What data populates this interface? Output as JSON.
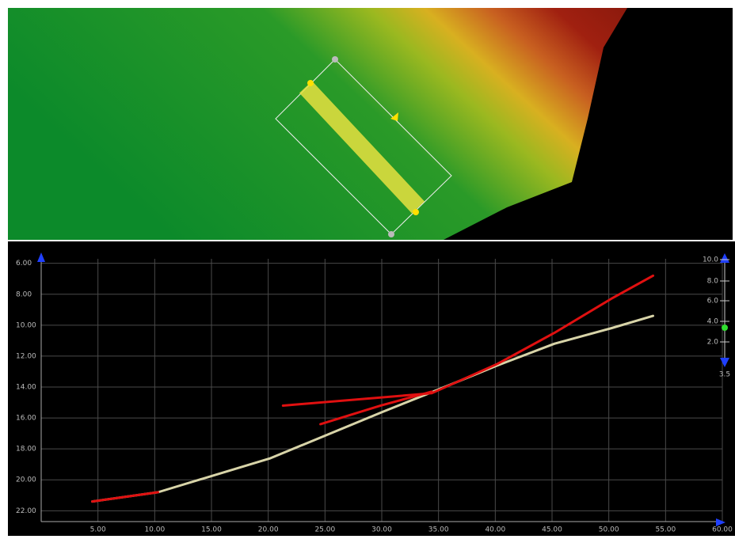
{
  "chart_data": {
    "type": "line",
    "y_inverted": true,
    "grid": true,
    "xlim": [
      0,
      60
    ],
    "ylim": [
      5.3,
      22.7
    ],
    "xticks": [
      {
        "value": 5,
        "label": "5.00"
      },
      {
        "value": 10,
        "label": "10.00"
      },
      {
        "value": 15,
        "label": "15.00"
      },
      {
        "value": 20,
        "label": "20.00"
      },
      {
        "value": 25,
        "label": "25.00"
      },
      {
        "value": 30,
        "label": "30.00"
      },
      {
        "value": 35,
        "label": "35.00"
      },
      {
        "value": 40,
        "label": "40.00"
      },
      {
        "value": 45,
        "label": "45.00"
      },
      {
        "value": 50,
        "label": "50.00"
      },
      {
        "value": 55,
        "label": "55.00"
      },
      {
        "value": 60,
        "label": "60.00"
      }
    ],
    "yticks": [
      {
        "value": 6,
        "label": "6.00"
      },
      {
        "value": 8,
        "label": "8.00"
      },
      {
        "value": 10,
        "label": "10.00"
      },
      {
        "value": 12,
        "label": "12.00"
      },
      {
        "value": 14,
        "label": "14.00"
      },
      {
        "value": 16,
        "label": "16.00"
      },
      {
        "value": 18,
        "label": "18.00"
      },
      {
        "value": 20,
        "label": "20.00"
      },
      {
        "value": 22,
        "label": "22.00"
      }
    ],
    "series": [
      {
        "color": "#d8d4a8",
        "x": [
          4.5,
          10.3,
          20.2,
          30.1,
          35.2,
          40.2,
          45.2,
          50.2,
          53.9
        ],
        "values": [
          21.4,
          20.8,
          18.6,
          15.6,
          14.1,
          12.6,
          11.2,
          10.2,
          9.4
        ]
      },
      {
        "color": "#e01010",
        "x": [
          21.3,
          34.4,
          40.2,
          45.2,
          50.2,
          53.9
        ],
        "values": [
          15.2,
          14.4,
          12.5,
          10.5,
          8.3,
          6.8
        ]
      },
      {
        "color": "#e01010",
        "x": [
          24.6,
          29.9,
          34.4
        ],
        "values": [
          16.4,
          15.2,
          14.3
        ]
      },
      {
        "color": "#e01010",
        "x": [
          4.5,
          10.3
        ],
        "values": [
          21.4,
          20.8
        ]
      }
    ]
  },
  "slider": {
    "labels": [
      "10.0",
      "8.0",
      "6.0",
      "4.0",
      "2.0"
    ],
    "value": "3.5"
  }
}
